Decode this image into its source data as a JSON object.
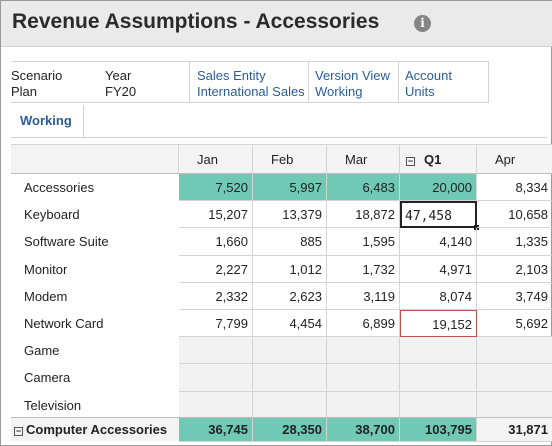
{
  "header": {
    "title": "Revenue Assumptions - Accessories",
    "info_glyph": "i"
  },
  "pov": {
    "scenario": {
      "label": "Scenario",
      "value": "Plan"
    },
    "year": {
      "label": "Year",
      "value": "FY20"
    },
    "sales_entity": {
      "label": "Sales Entity",
      "value": "International Sales"
    },
    "version": {
      "label": "Version View",
      "value": "Working"
    },
    "account": {
      "label": "Account",
      "value": "Units"
    }
  },
  "tabs": [
    {
      "label": "Working"
    }
  ],
  "grid": {
    "columns": [
      "Jan",
      "Feb",
      "Mar",
      "Q1",
      "Apr"
    ],
    "collapse_glyph": "−",
    "rows": [
      {
        "label": "Accessories",
        "values": [
          "7,520",
          "5,997",
          "6,483",
          "20,000",
          "8,334"
        ]
      },
      {
        "label": "Keyboard",
        "values": [
          "15,207",
          "13,379",
          "18,872",
          "47,458",
          "10,658"
        ]
      },
      {
        "label": "Software Suite",
        "values": [
          "1,660",
          "885",
          "1,595",
          "4,140",
          "1,335"
        ]
      },
      {
        "label": "Monitor",
        "values": [
          "2,227",
          "1,012",
          "1,732",
          "4,971",
          "2,103"
        ]
      },
      {
        "label": "Modem",
        "values": [
          "2,332",
          "2,623",
          "3,119",
          "8,074",
          "3,749"
        ]
      },
      {
        "label": "Network Card",
        "values": [
          "7,799",
          "4,454",
          "6,899",
          "19,152",
          "5,692"
        ]
      },
      {
        "label": "Game",
        "values": [
          "",
          "",
          "",
          "",
          ""
        ]
      },
      {
        "label": "Camera",
        "values": [
          "",
          "",
          "",
          "",
          ""
        ]
      },
      {
        "label": "Television",
        "values": [
          "",
          "",
          "",
          "",
          ""
        ]
      }
    ],
    "total": {
      "label": "Computer Accessories",
      "values": [
        "36,745",
        "28,350",
        "38,700",
        "103,795",
        "31,871"
      ]
    }
  },
  "colors": {
    "highlight": "#6fc9b4",
    "link": "#2a5c9a",
    "changed_border": "#c0504d"
  }
}
